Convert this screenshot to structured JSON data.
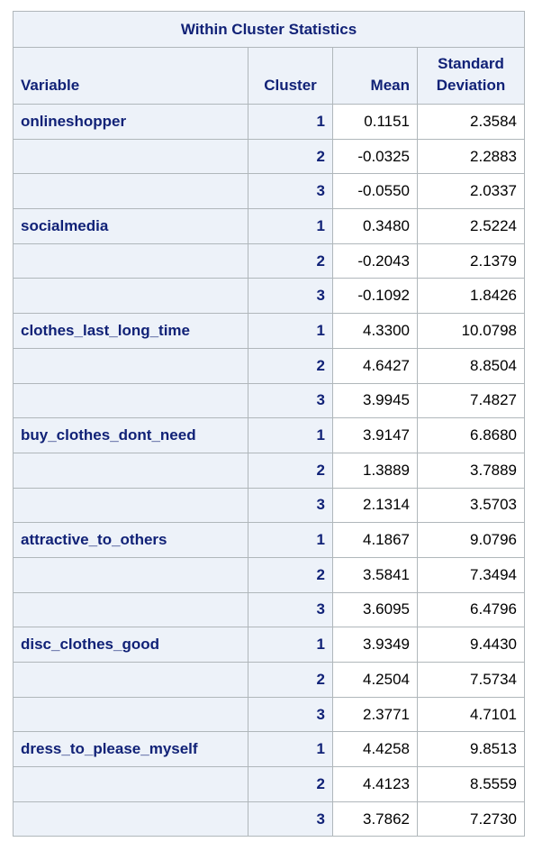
{
  "table": {
    "title": "Within Cluster Statistics",
    "headers": {
      "variable": "Variable",
      "cluster": "Cluster",
      "mean": "Mean",
      "std_line1": "Standard",
      "std_line2": "Deviation"
    },
    "rows": [
      {
        "variable": "onlineshopper",
        "cluster": "1",
        "mean": "0.1151",
        "std": "2.3584"
      },
      {
        "variable": "",
        "cluster": "2",
        "mean": "-0.0325",
        "std": "2.2883"
      },
      {
        "variable": "",
        "cluster": "3",
        "mean": "-0.0550",
        "std": "2.0337"
      },
      {
        "variable": "socialmedia",
        "cluster": "1",
        "mean": "0.3480",
        "std": "2.5224"
      },
      {
        "variable": "",
        "cluster": "2",
        "mean": "-0.2043",
        "std": "2.1379"
      },
      {
        "variable": "",
        "cluster": "3",
        "mean": "-0.1092",
        "std": "1.8426"
      },
      {
        "variable": "clothes_last_long_time",
        "cluster": "1",
        "mean": "4.3300",
        "std": "10.0798"
      },
      {
        "variable": "",
        "cluster": "2",
        "mean": "4.6427",
        "std": "8.8504"
      },
      {
        "variable": "",
        "cluster": "3",
        "mean": "3.9945",
        "std": "7.4827"
      },
      {
        "variable": "buy_clothes_dont_need",
        "cluster": "1",
        "mean": "3.9147",
        "std": "6.8680"
      },
      {
        "variable": "",
        "cluster": "2",
        "mean": "1.3889",
        "std": "3.7889"
      },
      {
        "variable": "",
        "cluster": "3",
        "mean": "2.1314",
        "std": "3.5703"
      },
      {
        "variable": "attractive_to_others",
        "cluster": "1",
        "mean": "4.1867",
        "std": "9.0796"
      },
      {
        "variable": "",
        "cluster": "2",
        "mean": "3.5841",
        "std": "7.3494"
      },
      {
        "variable": "",
        "cluster": "3",
        "mean": "3.6095",
        "std": "6.4796"
      },
      {
        "variable": "disc_clothes_good",
        "cluster": "1",
        "mean": "3.9349",
        "std": "9.4430"
      },
      {
        "variable": "",
        "cluster": "2",
        "mean": "4.2504",
        "std": "7.5734"
      },
      {
        "variable": "",
        "cluster": "3",
        "mean": "2.3771",
        "std": "4.7101"
      },
      {
        "variable": "dress_to_please_myself",
        "cluster": "1",
        "mean": "4.4258",
        "std": "9.8513"
      },
      {
        "variable": "",
        "cluster": "2",
        "mean": "4.4123",
        "std": "8.5559"
      },
      {
        "variable": "",
        "cluster": "3",
        "mean": "3.7862",
        "std": "7.2730"
      }
    ]
  },
  "colors": {
    "header_bg": "#edf2f9",
    "header_text": "#112277",
    "border": "#b0b7bb",
    "cell_bg": "#ffffff"
  }
}
